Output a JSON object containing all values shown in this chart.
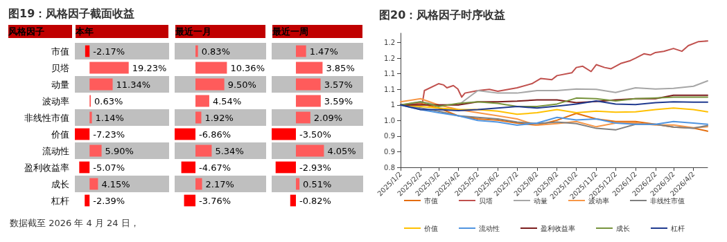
{
  "chart_data": [
    {
      "type": "bar",
      "orientation": "horizontal",
      "title": "图19：风格因子截面收益",
      "subtitle": "本年",
      "ylabel": "风格因子",
      "annotations": [
        "数据截至 2026 年 4 月 24 日，"
      ],
      "categories": [
        "市值",
        "贝塔",
        "动量",
        "波动率",
        "非线性市值",
        "价值",
        "流动性",
        "盈利收益率",
        "成长",
        "杠杆"
      ],
      "tick_labels": "y",
      "grid": false,
      "values": [
        -2.17,
        19.23,
        11.34,
        0.63,
        1.14,
        -7.23,
        5.9,
        -5.07,
        4.15,
        -2.39
      ],
      "value_labels": [
        "-2.17%",
        "19.23%",
        "11.34%",
        "0.63%",
        "1.14%",
        "-7.23%",
        "5.90%",
        "-5.07%",
        "4.15%",
        "-2.39%"
      ],
      "colors": [
        "#ff0000",
        "#ff5b5b",
        "#ff5b5b",
        "#ff5b5b",
        "#ff5b5b",
        "#ff0000",
        "#ff5b5b",
        "#ff0000",
        "#ff5b5b",
        "#ff0000"
      ]
    },
    {
      "type": "bar",
      "orientation": "horizontal",
      "title": "最近一月",
      "tick_labels": false,
      "grid": false,
      "values": [
        0.83,
        10.36,
        9.5,
        4.54,
        1.92,
        -6.86,
        5.34,
        -4.67,
        2.17,
        -3.76
      ],
      "value_labels": [
        "0.83%",
        "10.36%",
        "9.50%",
        "4.54%",
        "1.92%",
        "-6.86%",
        "5.34%",
        "-4.67%",
        "2.17%",
        "-3.76%"
      ],
      "colors": [
        "#ff5b5b",
        "#ff5b5b",
        "#ff5b5b",
        "#ff5b5b",
        "#ff5b5b",
        "#ff0000",
        "#ff5b5b",
        "#ff0000",
        "#ff5b5b",
        "#ff0000"
      ]
    },
    {
      "type": "bar",
      "orientation": "horizontal",
      "title": "最近一周",
      "tick_labels": false,
      "grid": false,
      "values": [
        1.47,
        3.85,
        3.57,
        3.59,
        2.09,
        -3.5,
        4.05,
        -2.93,
        0.51,
        -0.82
      ],
      "value_labels": [
        "1.47%",
        "3.85%",
        "3.57%",
        "3.59%",
        "2.09%",
        "-3.50%",
        "4.05%",
        "-2.93%",
        "0.51%",
        "-0.82%"
      ],
      "colors": [
        "#ff5b5b",
        "#ff5b5b",
        "#ff5b5b",
        "#ff5b5b",
        "#ff5b5b",
        "#ff0000",
        "#ff5b5b",
        "#ff0000",
        "#ff5b5b",
        "#ff0000"
      ]
    },
    {
      "type": "line",
      "title": "图20：风格因子时序收益",
      "grid": false,
      "legend": "bottom",
      "marker": "none",
      "line_style": "solid",
      "xlim": [
        "2025-01-02",
        "2026-04-24"
      ],
      "xticks": [
        {
          "value": "2025-01-02",
          "label": "2025/1/2"
        },
        {
          "value": "2025-02-02",
          "label": "2025/2/2"
        },
        {
          "value": "2025-03-02",
          "label": "2025/3/2"
        },
        {
          "value": "2025-04-02",
          "label": "2025/4/2"
        },
        {
          "value": "2025-05-02",
          "label": "2025/5/2"
        },
        {
          "value": "2025-06-02",
          "label": "2025/6/2"
        },
        {
          "value": "2025-07-02",
          "label": "2025/7/2"
        },
        {
          "value": "2025-08-02",
          "label": "2025/8/2"
        },
        {
          "value": "2025-09-02",
          "label": "2025/9/2"
        },
        {
          "value": "2025-10-02",
          "label": "2025/10/2"
        },
        {
          "value": "2025-11-02",
          "label": "2025/11/2"
        },
        {
          "value": "2025-12-02",
          "label": "2025/12/2"
        },
        {
          "value": "2026-01-02",
          "label": "2026/1/2"
        },
        {
          "value": "2026-02-02",
          "label": "2026/2/2"
        },
        {
          "value": "2026-03-02",
          "label": "2026/3/2"
        },
        {
          "value": "2026-04-02",
          "label": "2026/4/2"
        }
      ],
      "ylim": [
        0.8,
        1.23
      ],
      "yticks": [
        0.8,
        {
          "value": 0.85,
          "label": "0.9"
        },
        0.9,
        {
          "value": 0.95,
          "label": "1.0"
        },
        1.0,
        {
          "value": 1.05,
          "label": "1.1"
        },
        1.1,
        {
          "value": 1.15,
          "label": "1.2"
        },
        1.2
      ],
      "x": [
        "2025-01-02",
        "2025-02-02",
        "2025-03-02",
        "2025-04-02",
        "2025-05-02",
        "2025-06-02",
        "2025-07-02",
        "2025-08-02",
        "2025-09-02",
        "2025-10-02",
        "2025-11-02",
        "2025-12-02",
        "2026-01-02",
        "2026-02-02",
        "2026-03-02",
        "2026-04-02",
        "2026-04-24"
      ],
      "series": [
        {
          "name": "市值",
          "color": "#e46c0a",
          "values": [
            1.0,
            1.005,
            0.99,
            0.965,
            0.955,
            0.951,
            0.942,
            0.935,
            0.951,
            0.973,
            0.955,
            0.947,
            0.947,
            0.938,
            0.929,
            0.926,
            0.916
          ]
        },
        {
          "name": "贝塔",
          "color": "#c0504d",
          "x": [
            "2025-01-02",
            "2025-02-05",
            "2025-02-08",
            "2025-03-02",
            "2025-03-10",
            "2025-03-15",
            "2025-03-25",
            "2025-04-01",
            "2025-04-07",
            "2025-04-12",
            "2025-05-02",
            "2025-05-20",
            "2025-06-02",
            "2025-07-02",
            "2025-07-25",
            "2025-08-08",
            "2025-08-25",
            "2025-09-02",
            "2025-09-25",
            "2025-10-02",
            "2025-10-12",
            "2025-10-25",
            "2025-11-02",
            "2025-11-15",
            "2025-11-25",
            "2025-12-10",
            "2025-12-25",
            "2026-01-02",
            "2026-01-15",
            "2026-01-25",
            "2026-02-02",
            "2026-02-15",
            "2026-03-02",
            "2026-03-15",
            "2026-03-25",
            "2026-04-10",
            "2026-04-24"
          ],
          "values": [
            1.0,
            1.007,
            1.046,
            1.068,
            1.064,
            1.055,
            1.062,
            1.051,
            1.025,
            1.038,
            1.046,
            1.05,
            1.044,
            1.055,
            1.068,
            1.085,
            1.081,
            1.094,
            1.103,
            1.12,
            1.124,
            1.107,
            1.129,
            1.12,
            1.116,
            1.133,
            1.142,
            1.15,
            1.164,
            1.16,
            1.168,
            1.172,
            1.181,
            1.172,
            1.19,
            1.203,
            1.205
          ]
        },
        {
          "name": "动量",
          "color": "#a6a6a6",
          "values": [
            1.0,
            1.01,
            1.0,
            1.0,
            1.046,
            1.038,
            1.038,
            1.046,
            1.046,
            1.051,
            1.05,
            1.04,
            1.055,
            1.051,
            1.053,
            1.06,
            1.077
          ]
        },
        {
          "name": "波动率",
          "color": "#f79646",
          "values": [
            1.01,
            1.02,
            1.0,
            0.985,
            0.975,
            0.965,
            0.955,
            0.935,
            0.94,
            0.947,
            0.93,
            0.942,
            0.942,
            0.936,
            0.936,
            0.927,
            0.93
          ]
        },
        {
          "name": "非线性市值",
          "color": "#7f7f7f",
          "values": [
            1.0,
            0.99,
            0.98,
            0.965,
            0.96,
            0.955,
            0.945,
            0.94,
            0.945,
            0.94,
            0.925,
            0.92,
            0.938,
            0.938,
            0.929,
            0.925,
            0.934
          ]
        },
        {
          "name": "价值",
          "color": "#ffc000",
          "values": [
            1.0,
            0.995,
            0.99,
            0.985,
            0.985,
            0.98,
            0.97,
            0.975,
            0.985,
            0.975,
            0.98,
            0.977,
            0.978,
            0.985,
            0.99,
            0.985,
            0.978
          ]
        },
        {
          "name": "流动性",
          "color": "#4f94e0",
          "values": [
            1.0,
            0.985,
            0.975,
            0.965,
            0.95,
            0.945,
            0.935,
            0.942,
            0.96,
            0.952,
            0.955,
            0.942,
            0.938,
            0.938,
            0.947,
            0.942,
            0.938
          ]
        },
        {
          "name": "盈利收益率",
          "color": "#7b1c1c",
          "values": [
            1.0,
            1.0,
            1.0,
            1.0,
            1.01,
            1.01,
            1.012,
            1.016,
            1.016,
            1.007,
            1.011,
            1.016,
            1.02,
            1.02,
            1.031,
            1.031,
            1.031
          ]
        },
        {
          "name": "成长",
          "color": "#77933c",
          "values": [
            1.0,
            1.01,
            0.995,
            1.005,
            1.01,
            1.005,
            0.995,
            0.995,
            1.003,
            1.022,
            1.02,
            1.013,
            1.02,
            1.022,
            1.025,
            1.025,
            1.025
          ]
        },
        {
          "name": "杠杆",
          "color": "#1f3a8f",
          "values": [
            1.0,
            0.985,
            0.985,
            0.982,
            0.985,
            0.99,
            0.995,
            0.99,
            0.996,
            1.003,
            1.013,
            1.003,
            1.001,
            1.007,
            1.01,
            1.009,
            1.009
          ]
        }
      ]
    }
  ]
}
